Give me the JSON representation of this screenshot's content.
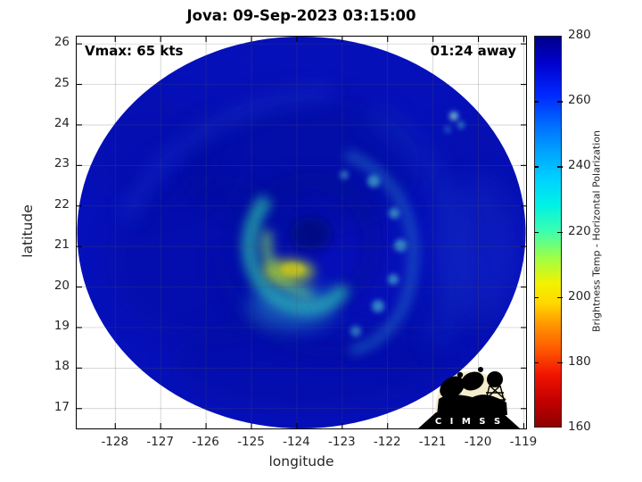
{
  "window": {
    "title": "Jova: 09-Sep-2023 03:15:00"
  },
  "annotations": {
    "vmax": "Vmax: 65 kts",
    "eta": "01:24 away"
  },
  "logo": {
    "name": "CIMSS",
    "text": "C I M S S"
  },
  "chart_data": {
    "type": "heatmap",
    "title": "Jova: 09-Sep-2023 03:15:00",
    "xlabel": "longitude",
    "ylabel": "latitude",
    "xlim": [
      -128.85,
      -118.95
    ],
    "ylim": [
      16.51,
      26.18
    ],
    "x_ticks": [
      -128,
      -127,
      -126,
      -125,
      -124,
      -123,
      -122,
      -121,
      -120,
      -119
    ],
    "y_ticks": [
      17,
      18,
      19,
      20,
      21,
      22,
      23,
      24,
      25,
      26
    ],
    "grid": true,
    "swath_shape": "circular microwave scan, deep blue ocean background with white corners outside scan",
    "colorbar": {
      "label": "Brightness Temp - Horizontal Polarization",
      "min": 160,
      "max": 280,
      "ticks": [
        160,
        180,
        200,
        220,
        240,
        260,
        280
      ],
      "stops": [
        {
          "value": 160,
          "color": "#8e0000"
        },
        {
          "value": 168,
          "color": "#c40000"
        },
        {
          "value": 176,
          "color": "#f01400"
        },
        {
          "value": 184,
          "color": "#ff5a00"
        },
        {
          "value": 192,
          "color": "#ff9c00"
        },
        {
          "value": 198,
          "color": "#ffd800"
        },
        {
          "value": 204,
          "color": "#f2f200"
        },
        {
          "value": 212,
          "color": "#9eff46"
        },
        {
          "value": 220,
          "color": "#3cffae"
        },
        {
          "value": 228,
          "color": "#00f2e4"
        },
        {
          "value": 236,
          "color": "#00d2ff"
        },
        {
          "value": 244,
          "color": "#00a6ff"
        },
        {
          "value": 252,
          "color": "#0072ff"
        },
        {
          "value": 262,
          "color": "#0028ff"
        },
        {
          "value": 272,
          "color": "#0000cd"
        },
        {
          "value": 280,
          "color": "#00008a"
        }
      ]
    },
    "storm": {
      "name": "Jova",
      "datetime": "09-Sep-2023 03:15:00",
      "vmax_kts": 65,
      "time_to_closest_approach": "01:24",
      "eye_lon": -123.86,
      "eye_lat": 21.26,
      "warmest_eyewall_feature": {
        "lon": -124.25,
        "lat": 20.35,
        "approx_value_K": 210
      },
      "background_ocean_approx_K": 265
    }
  }
}
